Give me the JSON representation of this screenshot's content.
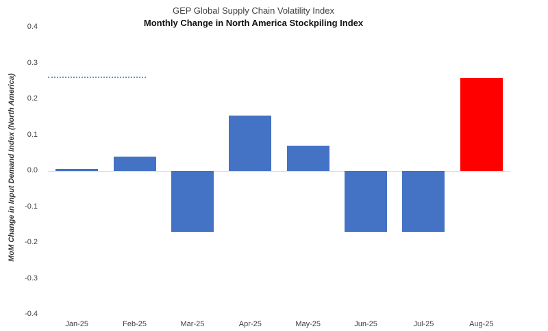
{
  "chart_data": {
    "type": "bar",
    "title": "GEP Global Supply Chain Volatility Index",
    "subtitle": "Monthly Change in North America Stockpiling Index",
    "ylabel": "MoM Change in Input Demand Index (North America)",
    "xlabel": "",
    "categories": [
      "Jan-25",
      "Feb-25",
      "Mar-25",
      "Apr-25",
      "May-25",
      "Jun-25",
      "Jul-25",
      "Aug-25"
    ],
    "values": [
      0.005,
      0.04,
      -0.17,
      0.155,
      0.07,
      -0.17,
      -0.17,
      0.26
    ],
    "bar_colors": [
      "#4472C4",
      "#4472C4",
      "#4472C4",
      "#4472C4",
      "#4472C4",
      "#4472C4",
      "#4472C4",
      "#FF0000"
    ],
    "ylim": [
      -0.4,
      0.4
    ],
    "yticks": [
      0.4,
      0.3,
      0.2,
      0.1,
      0.0,
      -0.1,
      -0.2,
      -0.3,
      -0.4
    ],
    "ytick_labels": [
      "0.4",
      "0.3",
      "0.2",
      "0.1",
      "0.0",
      "-0.1",
      "-0.2",
      "-0.3",
      "-0.4"
    ],
    "grid": false,
    "legend": "none",
    "zero_axis_color": "#D9D9D9",
    "reference_line": {
      "value": 0.26,
      "style": "dotted",
      "color": "#5B9BD5",
      "span_categories": [
        "Jan-25",
        "Feb-25"
      ]
    }
  }
}
